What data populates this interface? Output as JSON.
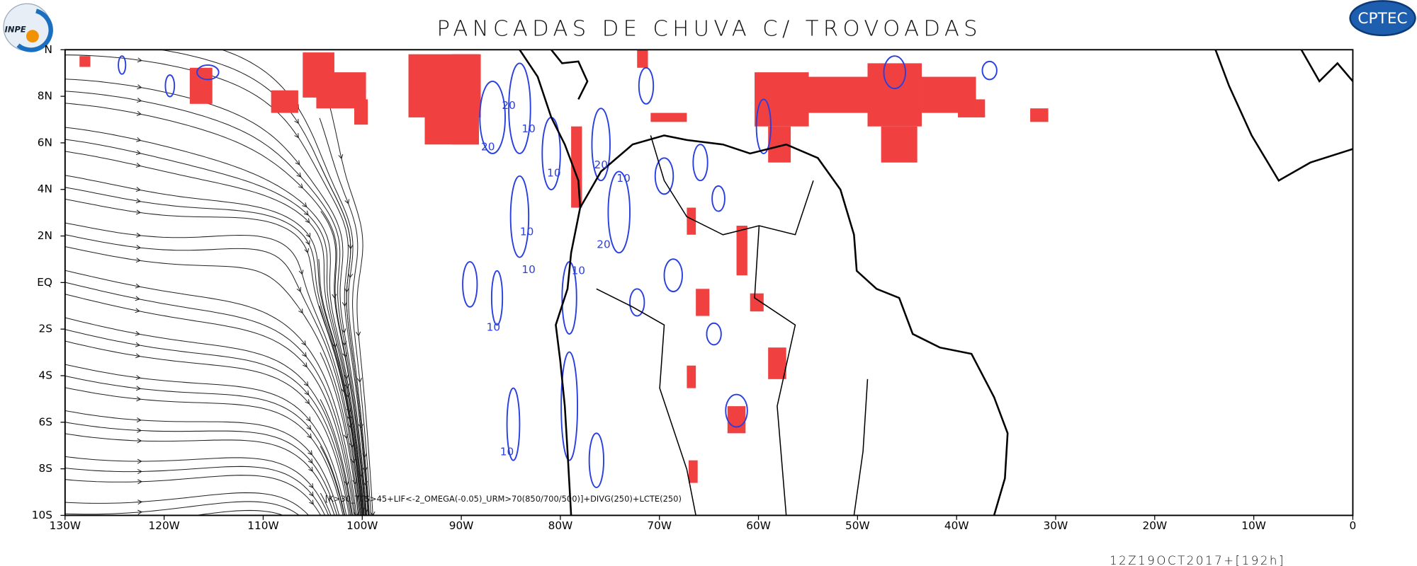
{
  "header": {
    "title": "PANCADAS DE CHUVA C/ TROVOADAS",
    "logo_left": "INPE",
    "logo_right": "CPTEC"
  },
  "map": {
    "lat_labels": [
      "N",
      "8N",
      "6N",
      "4N",
      "2N",
      "EQ",
      "2S",
      "4S",
      "6S",
      "8S",
      "10S"
    ],
    "lon_labels": [
      "130W",
      "120W",
      "110W",
      "100W",
      "90W",
      "80W",
      "70W",
      "60W",
      "50W",
      "40W",
      "30W",
      "20W",
      "10W",
      "0"
    ],
    "contour_labels": [
      "20",
      "10",
      "20",
      "10",
      "20",
      "10",
      "10",
      "20",
      "10",
      "10",
      "10",
      "10"
    ],
    "caption": "[K>30_TTS>45+LIF<-2_OMEGA(-0.05)_URM>70(850/700/500)]+DIVG(250)+LCTE(250)"
  },
  "footer": {
    "valid_time": "12Z19OCT2017+[192h]"
  }
}
